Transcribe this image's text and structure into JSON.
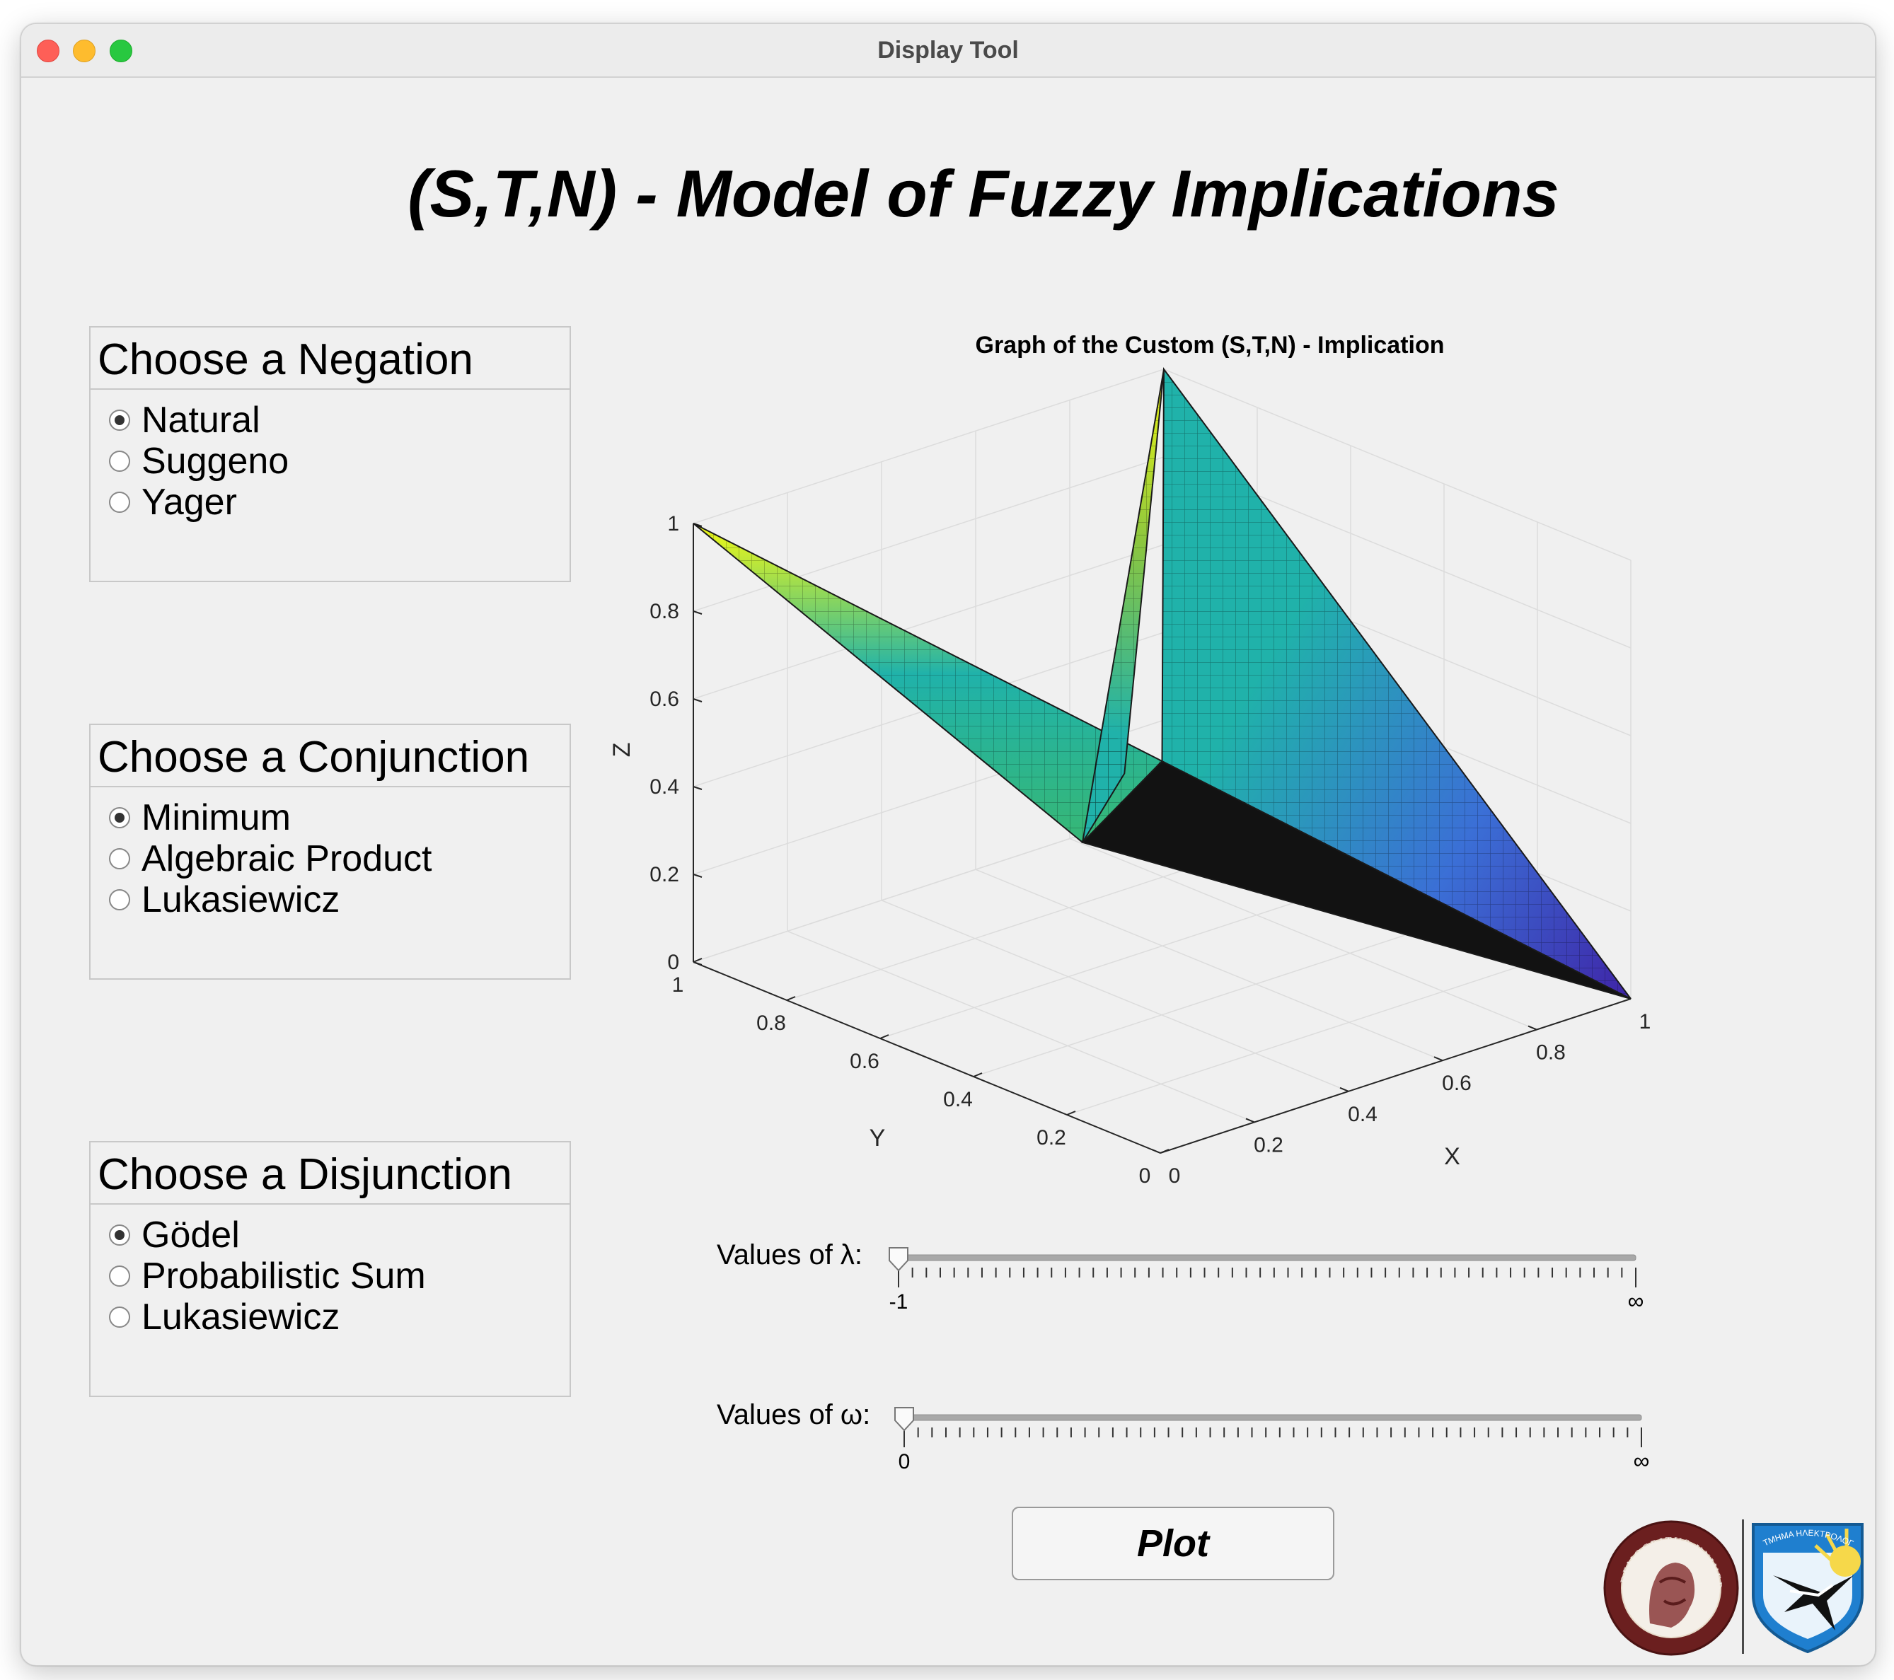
{
  "window": {
    "title": "Display Tool"
  },
  "app": {
    "title": "(S,T,N) - Model of Fuzzy Implications"
  },
  "groups": {
    "negation": {
      "title": "Choose a Negation",
      "options": [
        "Natural",
        "Suggeno",
        "Yager"
      ],
      "selected": "Natural"
    },
    "conjunction": {
      "title": "Choose a Conjunction",
      "options": [
        "Minimum",
        "Algebraic Product",
        "Lukasiewicz"
      ],
      "selected": "Minimum"
    },
    "disjunction": {
      "title": "Choose a Disjunction",
      "options": [
        "Gödel",
        "Probabilistic Sum",
        "Lukasiewicz"
      ],
      "selected": "Gödel"
    }
  },
  "chart_data": {
    "type": "surface",
    "title": "Graph of the Custom (S,T,N) - Implication",
    "xlabel": "X",
    "ylabel": "Y",
    "zlabel": "Z",
    "xlim": [
      0,
      1
    ],
    "ylim": [
      0,
      1
    ],
    "zlim": [
      0,
      1
    ],
    "x_ticks": [
      "0",
      "0.2",
      "0.4",
      "0.6",
      "0.8",
      "1"
    ],
    "y_ticks": [
      "0",
      "0.2",
      "0.4",
      "0.6",
      "0.8",
      "1"
    ],
    "z_ticks": [
      "0",
      "0.2",
      "0.4",
      "0.6",
      "0.8",
      "1"
    ],
    "grid": true,
    "colormap": "parula",
    "surface": {
      "x": [
        0,
        0.5,
        1
      ],
      "y": [
        0,
        0.5,
        1
      ],
      "z": [
        [
          1,
          0.5,
          0
        ],
        [
          0.5,
          0.5,
          0.5
        ],
        [
          1,
          0.5,
          0
        ]
      ]
    },
    "colors": {
      "low": "#3e26a8",
      "mid": "#20b2aa",
      "high": "#f9fb0e"
    }
  },
  "sliders": {
    "lambda": {
      "label": "Values of λ:",
      "min_label": "-1",
      "max_label": "∞",
      "value": 0
    },
    "omega": {
      "label": "Values of ω:",
      "min_label": "0",
      "max_label": "∞",
      "value": 0
    }
  },
  "buttons": {
    "plot": "Plot"
  },
  "logos": {
    "university_seal": "DEMOCRITUS UNIVERSITY OF THRACE",
    "department_shield": "ΤΜΗΜΑ ΗΛΕΚΤΡΟΛΟΓΩΝ ΜΗΧΑΝΙΚΩΝ"
  }
}
